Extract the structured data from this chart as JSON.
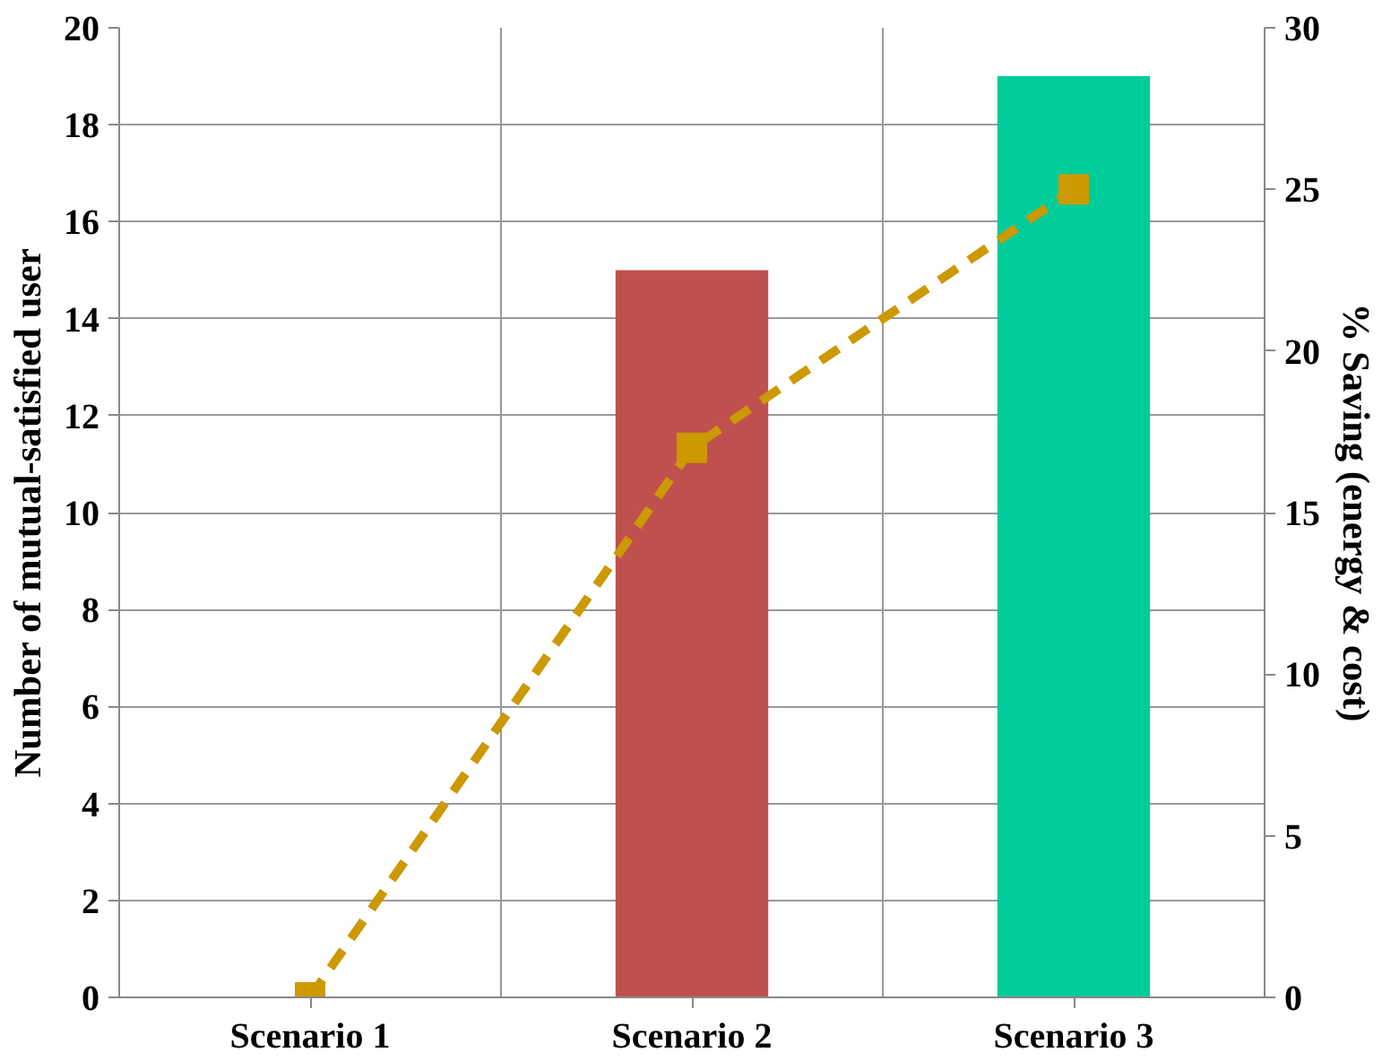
{
  "chart_data": {
    "type": "bar",
    "ylabel": "Number of mutual-satisfied user",
    "y2label": "% Saving (energy & cost)",
    "categories": [
      "Scenario 1",
      "Scenario 2",
      "Scenario 3"
    ],
    "series": [
      {
        "values": [
          0,
          15,
          19
        ],
        "colors": [
          "#c0504d",
          "#c0504d",
          "#00cc99"
        ]
      },
      {
        "type": "line",
        "axis": "y2",
        "values": [
          0,
          17,
          25
        ],
        "color": "#cc9900",
        "marker": "square",
        "line_style": "dashed"
      }
    ],
    "ylim": [
      0,
      20
    ],
    "yticks": [
      0,
      2,
      4,
      6,
      8,
      10,
      12,
      14,
      16,
      18,
      20
    ],
    "y2lim": [
      0,
      30
    ],
    "y2ticks": [
      0,
      5,
      10,
      15,
      20,
      25,
      30
    ],
    "grid": true
  }
}
